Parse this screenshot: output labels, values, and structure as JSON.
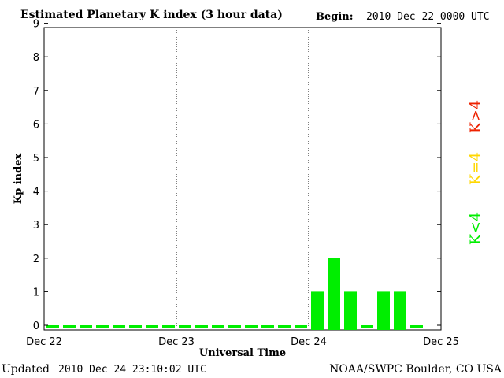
{
  "colors": {
    "quiet": "#00ee00",
    "moderate": "#ffd700",
    "storm": "#ee2200",
    "axis": "#000000"
  },
  "header": {
    "title": "Estimated Planetary K index (3 hour data)",
    "begin_label": "Begin:",
    "begin_value": "2010 Dec 22 0000 UTC"
  },
  "footer": {
    "updated_label": "Updated",
    "updated_value": "2010 Dec 24 23:10:02 UTC",
    "source": "NOAA/SWPC Boulder, CO USA"
  },
  "legend": [
    {
      "label": "K<4",
      "color": "#00ee00"
    },
    {
      "label": "K=4",
      "color": "#ffd700"
    },
    {
      "label": "K>4",
      "color": "#ee2200"
    }
  ],
  "chart_data": {
    "type": "bar",
    "xlabel": "Universal Time",
    "ylabel": "Kp index",
    "ylim": [
      0,
      9
    ],
    "yticks": [
      "0",
      "1",
      "2",
      "3",
      "4",
      "5",
      "6",
      "7",
      "8",
      "9"
    ],
    "xticks": [
      "Dec 22",
      "Dec 23",
      "Dec 24",
      "Dec 25"
    ],
    "day_dividers": "dotted",
    "grid": false,
    "values": [
      0,
      0,
      0,
      0,
      0,
      0,
      0,
      0,
      0,
      0,
      0,
      0,
      0,
      0,
      0,
      0,
      1,
      2,
      1,
      0,
      1,
      1,
      0,
      null
    ]
  }
}
